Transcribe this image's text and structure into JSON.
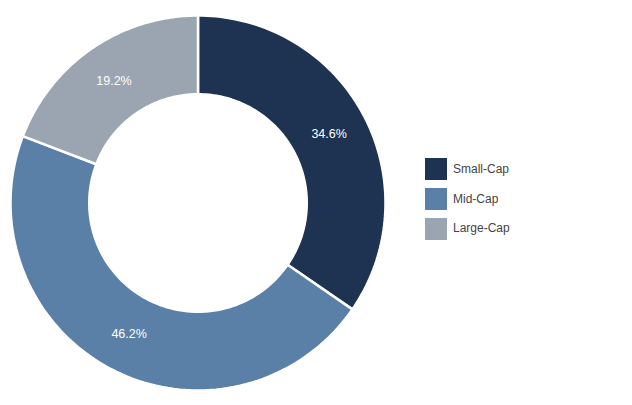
{
  "chart_data": {
    "type": "donut",
    "categories": [
      "Small-Cap",
      "Mid-Cap",
      "Large-Cap"
    ],
    "values": [
      34.6,
      46.2,
      19.2
    ],
    "value_labels": [
      "34.6%",
      "46.2%",
      "19.2%"
    ],
    "colors": [
      "#1e3352",
      "#5b80a8",
      "#9aa5b1"
    ],
    "data_labels": true,
    "legend": "right"
  }
}
